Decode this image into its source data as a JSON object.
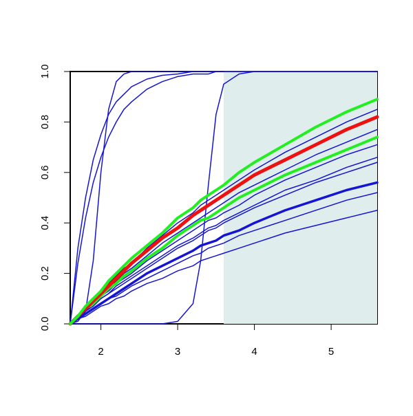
{
  "chart_data": {
    "type": "line",
    "x": [
      1.6,
      1.7,
      1.8,
      1.9,
      2.0,
      2.1,
      2.2,
      2.3,
      2.4,
      2.6,
      2.8,
      3.0,
      3.2,
      3.3,
      3.4,
      3.5,
      3.6,
      3.8,
      4.0,
      4.4,
      4.8,
      5.2,
      5.6
    ],
    "xlim": [
      1.6,
      5.6
    ],
    "ylim": [
      0,
      1
    ],
    "xticks": [
      2,
      3,
      4,
      5
    ],
    "yticks": [
      {
        "value": 0,
        "label": "0.0"
      },
      0.2,
      0.4,
      0.6,
      0.8,
      {
        "value": 1,
        "label": "1.0"
      }
    ],
    "shaded_region": {
      "xmin": 3.6,
      "xmax": 5.6,
      "color": "#e0eded"
    },
    "series": [
      {
        "color": "#1414d2",
        "width": 1.5,
        "values": [
          0,
          0,
          0,
          0,
          0,
          0,
          0,
          0,
          0,
          0,
          0,
          0.01,
          0.08,
          0.25,
          0.55,
          0.83,
          0.95,
          0.99,
          1,
          1,
          1,
          1,
          1
        ]
      },
      {
        "color": "#1414d2",
        "width": 1.5,
        "values": [
          0,
          0.01,
          0.05,
          0.25,
          0.6,
          0.85,
          0.96,
          0.99,
          1,
          1,
          1,
          1,
          1,
          1,
          1,
          1,
          1,
          1,
          1,
          1,
          1,
          1,
          1
        ]
      },
      {
        "color": "#1414d2",
        "width": 1.5,
        "values": [
          0,
          0.3,
          0.5,
          0.65,
          0.75,
          0.83,
          0.88,
          0.91,
          0.94,
          0.97,
          0.985,
          0.99,
          1,
          1,
          1,
          1,
          1,
          1,
          1,
          1,
          1,
          1,
          1
        ]
      },
      {
        "color": "#1414d2",
        "width": 1.5,
        "values": [
          0,
          0.24,
          0.42,
          0.56,
          0.66,
          0.74,
          0.8,
          0.85,
          0.88,
          0.93,
          0.96,
          0.98,
          0.99,
          0.99,
          0.99,
          1,
          1,
          1,
          1,
          1,
          1,
          1,
          1
        ]
      },
      {
        "color": "#1414d2",
        "width": 1.5,
        "values": [
          0,
          0.03,
          0.07,
          0.1,
          0.13,
          0.16,
          0.19,
          0.22,
          0.24,
          0.3,
          0.35,
          0.4,
          0.44,
          0.47,
          0.49,
          0.51,
          0.53,
          0.57,
          0.61,
          0.68,
          0.74,
          0.8,
          0.85
        ]
      },
      {
        "color": "#1414d2",
        "width": 1.5,
        "values": [
          0,
          0.03,
          0.06,
          0.09,
          0.12,
          0.14,
          0.17,
          0.2,
          0.22,
          0.27,
          0.32,
          0.36,
          0.4,
          0.42,
          0.44,
          0.46,
          0.48,
          0.52,
          0.55,
          0.61,
          0.67,
          0.72,
          0.77
        ]
      },
      {
        "color": "#1414d2",
        "width": 1.5,
        "values": [
          0,
          0.03,
          0.05,
          0.08,
          0.11,
          0.13,
          0.16,
          0.18,
          0.2,
          0.25,
          0.29,
          0.33,
          0.37,
          0.39,
          0.41,
          0.42,
          0.44,
          0.47,
          0.51,
          0.57,
          0.62,
          0.67,
          0.71
        ]
      },
      {
        "color": "#1414d2",
        "width": 1.5,
        "values": [
          0,
          0.03,
          0.05,
          0.08,
          0.1,
          0.12,
          0.15,
          0.17,
          0.19,
          0.23,
          0.27,
          0.31,
          0.34,
          0.36,
          0.38,
          0.39,
          0.41,
          0.44,
          0.47,
          0.53,
          0.57,
          0.62,
          0.66
        ]
      },
      {
        "color": "#1414d2",
        "width": 1.5,
        "values": [
          0,
          0.02,
          0.05,
          0.07,
          0.1,
          0.12,
          0.14,
          0.16,
          0.18,
          0.22,
          0.26,
          0.3,
          0.33,
          0.35,
          0.37,
          0.38,
          0.4,
          0.43,
          0.46,
          0.51,
          0.56,
          0.6,
          0.64
        ]
      },
      {
        "color": "#1414d2",
        "width": 3.5,
        "values": [
          0,
          0.02,
          0.04,
          0.06,
          0.08,
          0.1,
          0.12,
          0.14,
          0.16,
          0.2,
          0.23,
          0.26,
          0.29,
          0.31,
          0.32,
          0.33,
          0.35,
          0.37,
          0.4,
          0.45,
          0.49,
          0.53,
          0.56
        ]
      },
      {
        "color": "#1414d2",
        "width": 1.5,
        "values": [
          0,
          0.02,
          0.04,
          0.06,
          0.08,
          0.1,
          0.11,
          0.13,
          0.15,
          0.18,
          0.21,
          0.24,
          0.27,
          0.28,
          0.3,
          0.31,
          0.32,
          0.35,
          0.37,
          0.41,
          0.45,
          0.49,
          0.52
        ]
      },
      {
        "color": "#1414d2",
        "width": 1.5,
        "values": [
          0,
          0.02,
          0.03,
          0.05,
          0.07,
          0.08,
          0.1,
          0.11,
          0.13,
          0.16,
          0.18,
          0.21,
          0.23,
          0.25,
          0.26,
          0.27,
          0.28,
          0.3,
          0.32,
          0.36,
          0.39,
          0.42,
          0.45
        ]
      },
      {
        "color": "#22ee22",
        "width": 4,
        "values": [
          0,
          0.03,
          0.06,
          0.08,
          0.11,
          0.14,
          0.16,
          0.19,
          0.21,
          0.26,
          0.3,
          0.35,
          0.39,
          0.41,
          0.42,
          0.44,
          0.46,
          0.5,
          0.53,
          0.59,
          0.64,
          0.69,
          0.74
        ]
      },
      {
        "color": "#ee1111",
        "width": 5,
        "values": [
          0,
          0.03,
          0.06,
          0.09,
          0.12,
          0.15,
          0.18,
          0.21,
          0.24,
          0.29,
          0.34,
          0.38,
          0.43,
          0.45,
          0.47,
          0.49,
          0.51,
          0.55,
          0.59,
          0.65,
          0.71,
          0.77,
          0.82
        ]
      },
      {
        "color": "#22ee22",
        "width": 4,
        "values": [
          0,
          0.03,
          0.07,
          0.1,
          0.13,
          0.17,
          0.2,
          0.23,
          0.26,
          0.31,
          0.36,
          0.42,
          0.46,
          0.49,
          0.51,
          0.53,
          0.55,
          0.6,
          0.64,
          0.71,
          0.78,
          0.84,
          0.89
        ]
      }
    ]
  }
}
